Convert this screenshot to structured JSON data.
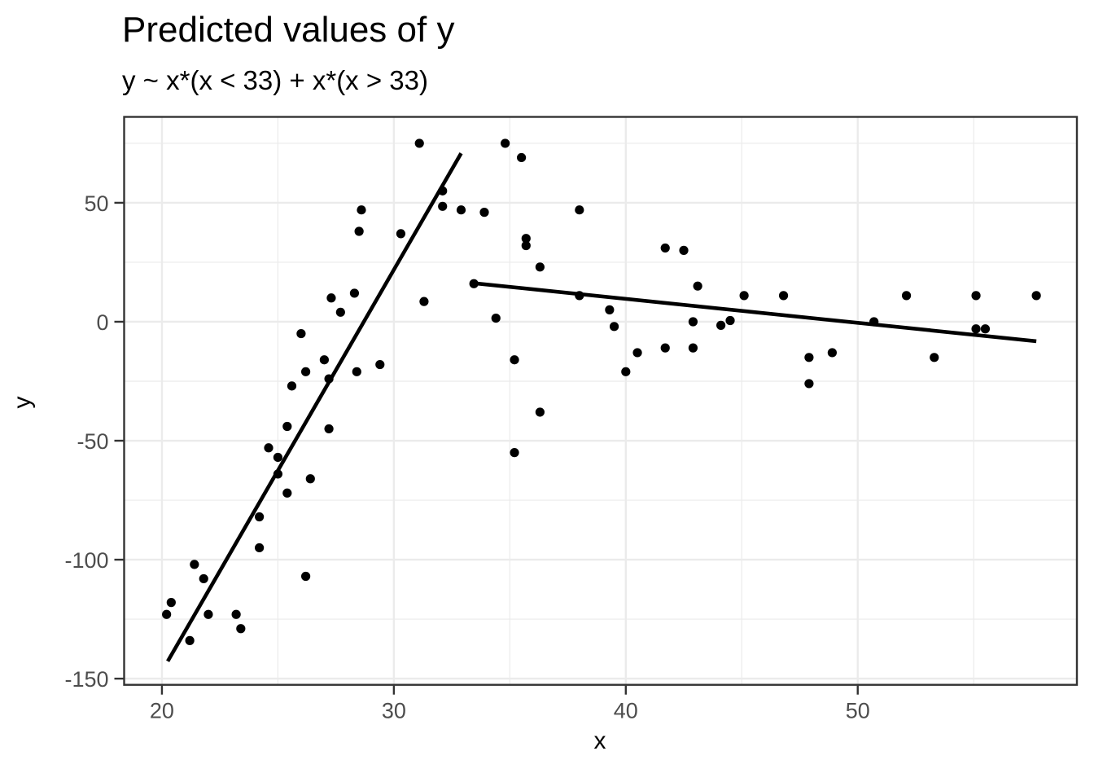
{
  "header": {
    "title": "Predicted values of y",
    "subtitle": "y ~ x*(x < 33) + x*(x > 33)"
  },
  "axes": {
    "x_label": "x",
    "y_label": "y"
  },
  "chart_data": {
    "type": "scatter",
    "title": "Predicted values of y",
    "subtitle": "y ~ x*(x < 33) + x*(x > 33)",
    "xlabel": "x",
    "ylabel": "y",
    "xlim": [
      18.37,
      59.45
    ],
    "ylim": [
      -152.6,
      86.1
    ],
    "grid": true,
    "legend": "none",
    "x_ticks": {
      "major": [
        20,
        30,
        40,
        50
      ],
      "labels": [
        "20",
        "30",
        "40",
        "50"
      ],
      "minor": [
        25,
        35,
        45,
        55
      ]
    },
    "y_ticks": {
      "major": [
        50,
        0,
        -50,
        -100,
        -150
      ],
      "labels": [
        "50",
        "0",
        "-50",
        "-100",
        "-150"
      ],
      "minor": [
        75,
        25,
        -25,
        -75,
        -125
      ]
    },
    "points": [
      [
        20.2,
        -123
      ],
      [
        20.4,
        -118
      ],
      [
        21.2,
        -134
      ],
      [
        21.4,
        -102
      ],
      [
        21.8,
        -108
      ],
      [
        22.0,
        -123
      ],
      [
        23.2,
        -123
      ],
      [
        23.4,
        -129
      ],
      [
        24.2,
        -82
      ],
      [
        24.2,
        -95
      ],
      [
        24.6,
        -53
      ],
      [
        25.0,
        -57
      ],
      [
        25.0,
        -64
      ],
      [
        25.4,
        -44
      ],
      [
        25.4,
        -72
      ],
      [
        25.6,
        -27
      ],
      [
        26.0,
        -5
      ],
      [
        26.2,
        -21
      ],
      [
        26.2,
        -107
      ],
      [
        26.4,
        -66
      ],
      [
        27.0,
        -16
      ],
      [
        27.2,
        -24
      ],
      [
        27.2,
        -45
      ],
      [
        27.3,
        10
      ],
      [
        27.7,
        4
      ],
      [
        28.3,
        12
      ],
      [
        28.4,
        -21
      ],
      [
        28.5,
        38
      ],
      [
        28.6,
        47
      ],
      [
        29.4,
        -18
      ],
      [
        30.3,
        37
      ],
      [
        31.1,
        75
      ],
      [
        31.3,
        8.5
      ],
      [
        32.1,
        55
      ],
      [
        32.1,
        48.5
      ],
      [
        32.9,
        47
      ],
      [
        33.45,
        16
      ],
      [
        33.9,
        46
      ],
      [
        34.4,
        1.5
      ],
      [
        34.8,
        75
      ],
      [
        35.2,
        -16
      ],
      [
        35.2,
        -55
      ],
      [
        35.5,
        69
      ],
      [
        35.7,
        35
      ],
      [
        35.7,
        32
      ],
      [
        36.3,
        23
      ],
      [
        36.3,
        -38
      ],
      [
        38.0,
        47
      ],
      [
        38.0,
        11
      ],
      [
        39.3,
        5
      ],
      [
        39.5,
        -2
      ],
      [
        40.0,
        -21
      ],
      [
        40.5,
        -13
      ],
      [
        41.7,
        31
      ],
      [
        41.7,
        -11
      ],
      [
        42.5,
        30
      ],
      [
        42.9,
        0
      ],
      [
        42.9,
        -11
      ],
      [
        43.1,
        15
      ],
      [
        44.1,
        -1.5
      ],
      [
        44.5,
        0.5
      ],
      [
        45.1,
        11
      ],
      [
        46.8,
        11
      ],
      [
        47.9,
        -15
      ],
      [
        47.9,
        -26
      ],
      [
        48.9,
        -13
      ],
      [
        50.7,
        0
      ],
      [
        52.1,
        11
      ],
      [
        53.3,
        -15
      ],
      [
        55.1,
        11
      ],
      [
        55.1,
        -3
      ],
      [
        55.5,
        -3
      ],
      [
        57.7,
        11
      ]
    ],
    "series": [
      {
        "name": "fit-x-lt-33",
        "type": "line",
        "points": [
          [
            20.25,
            -142.7
          ],
          [
            32.9,
            70.8
          ]
        ]
      },
      {
        "name": "fit-x-gt-33",
        "type": "line",
        "points": [
          [
            33.45,
            16.2
          ],
          [
            57.7,
            -8.2
          ]
        ]
      }
    ],
    "colors": {
      "background": "#FFFFFF",
      "grid": "#EBEBEB",
      "panel_border": "#333333",
      "tick_mark": "#333333",
      "tick_label": "#4D4D4D",
      "text": "#000000",
      "point": "#000000",
      "line": "#000000"
    }
  }
}
